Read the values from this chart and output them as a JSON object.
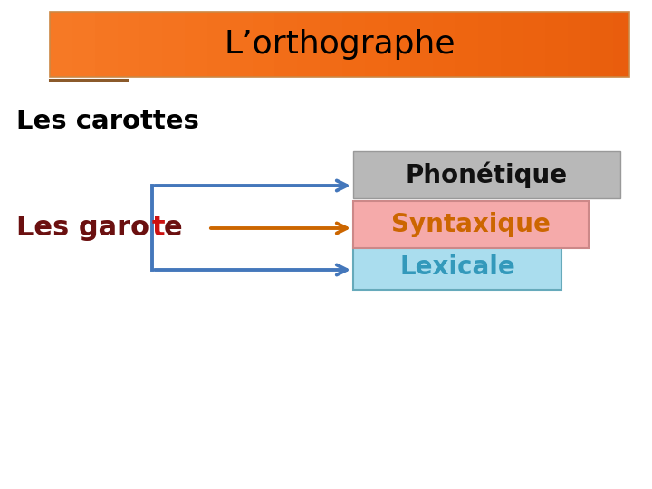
{
  "title": "L’orthographe",
  "title_bg_color": "#F5B07A",
  "title_text_color": "#000000",
  "bg_color": "#ffffff",
  "subtitle": "Les carottes",
  "subtitle_color": "#000000",
  "left_label_dark_color": "#6B1010",
  "left_label_red_color": "#CC1111",
  "box1_text": "Phonétique",
  "box1_text_color": "#111111",
  "box1_bg": "#B8B8B8",
  "box1_edge": "#999999",
  "box2_text": "Syntaxique",
  "box2_text_color": "#CC6600",
  "box2_bg": "#F5AAAA",
  "box2_edge": "#CC8888",
  "box3_text": "Lexicale",
  "box3_text_color": "#3399BB",
  "box3_bg": "#AADDEE",
  "box3_edge": "#66AABB",
  "arrow_top_color": "#4477BB",
  "arrow_mid_color": "#CC6600",
  "arrow_bot_color": "#4477BB",
  "bracket_color": "#4477BB",
  "underline_color": "#8B5A2B"
}
